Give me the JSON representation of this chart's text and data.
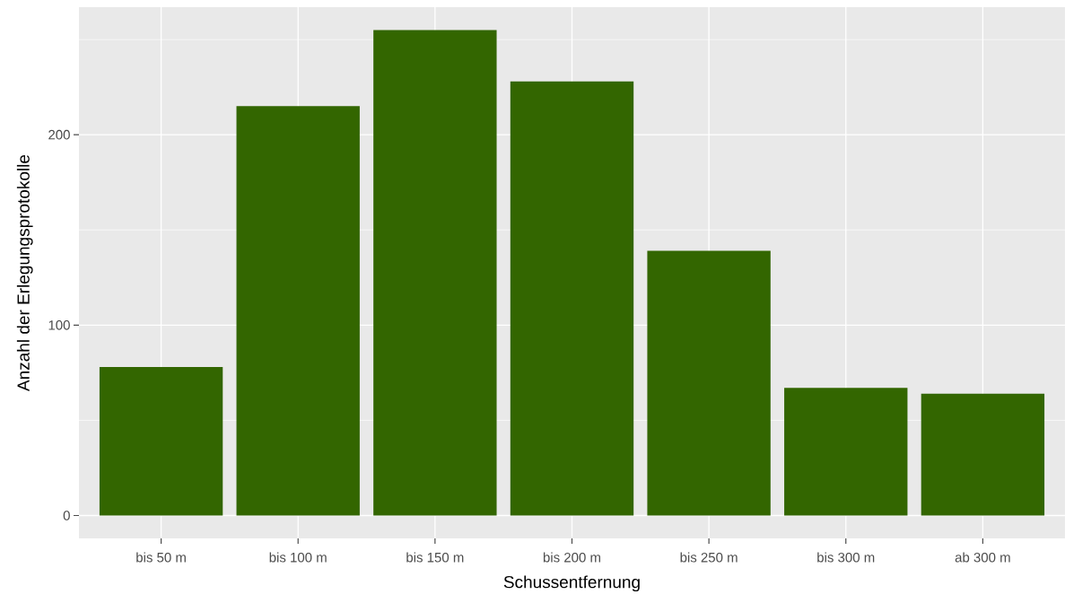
{
  "chart_data": {
    "type": "bar",
    "xlabel": "Schussentfernung",
    "ylabel": "Anzahl der Erlegungsprotokolle",
    "categories": [
      "bis 50 m",
      "bis 100 m",
      "bis 150 m",
      "bis 200 m",
      "bis 250 m",
      "bis 300 m",
      "ab 300 m"
    ],
    "values": [
      78,
      215,
      255,
      228,
      139,
      67,
      64
    ],
    "color": "#336600",
    "ylim": [
      -12,
      267
    ],
    "yticks": [
      0,
      {
        "value": 50,
        "label": null
      },
      100,
      {
        "value": 150,
        "label": null
      },
      200,
      {
        "value": 250,
        "label": null
      }
    ],
    "grid": true
  }
}
